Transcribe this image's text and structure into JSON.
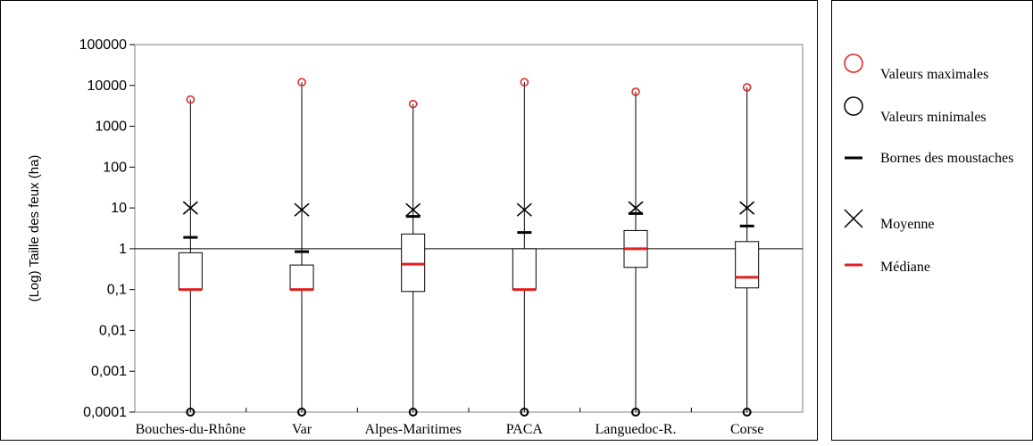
{
  "colors": {
    "max": "#e02020",
    "median": "#e02020",
    "min": "#000000",
    "whisker": "#000000",
    "mean": "#000000"
  },
  "legend": {
    "items": [
      {
        "symbol": "red-circle",
        "label": "Valeurs maximales"
      },
      {
        "symbol": "black-circle",
        "label": "Valeurs minimales"
      },
      {
        "symbol": "dash",
        "label": "Bornes des moustaches"
      },
      {
        "symbol": "x-mark",
        "label": "Moyenne"
      },
      {
        "symbol": "red-dash",
        "label": "Médiane"
      }
    ]
  },
  "chart_data": {
    "type": "box",
    "title": "",
    "xlabel": "",
    "ylabel": "(Log) Taille des feux (ha)",
    "yscale": "log",
    "ylim": [
      0.0001,
      100000
    ],
    "yticks": [
      "0,0001",
      "0,001",
      "0,01",
      "0,1",
      "1",
      "10",
      "100",
      "1000",
      "10000",
      "100000"
    ],
    "reference_line": 1,
    "categories": [
      "Bouches-du-Rhône",
      "Var",
      "Alpes-Maritimes",
      "PACA",
      "Languedoc-R.",
      "Corse"
    ],
    "series": [
      {
        "name": "Valeurs maximales",
        "values": [
          4500,
          12000,
          3500,
          12000,
          7000,
          9000
        ]
      },
      {
        "name": "Valeurs minimales",
        "values": [
          0.0001,
          0.0001,
          0.0001,
          0.0001,
          0.0001,
          0.0001
        ]
      },
      {
        "name": "Bornes des moustaches",
        "values": [
          1.9,
          0.85,
          6.2,
          2.5,
          7.3,
          3.6
        ]
      },
      {
        "name": "Moyenne",
        "values": [
          10,
          9,
          9,
          9,
          10,
          10
        ]
      },
      {
        "name": "Médiane",
        "values": [
          0.1,
          0.1,
          0.42,
          0.1,
          1,
          0.2
        ]
      }
    ],
    "q1": [
      0.1,
      0.1,
      0.09,
      0.1,
      0.35,
      0.11
    ],
    "q3": [
      0.8,
      0.4,
      2.3,
      1,
      2.8,
      1.5
    ]
  }
}
